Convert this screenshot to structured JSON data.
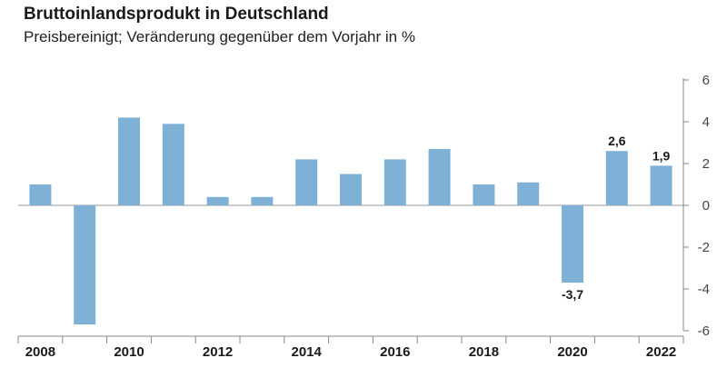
{
  "header": {
    "title": "Bruttoinlandsprodukt in Deutschland",
    "subtitle": "Preisbereinigt; Veränderung gegenüber dem Vorjahr in %"
  },
  "colors": {
    "bar": "#7fb0d6",
    "axis": "#888888",
    "text": "#1a1a1a"
  },
  "chart_data": {
    "type": "bar",
    "title": "Bruttoinlandsprodukt in Deutschland",
    "subtitle": "Preisbereinigt; Veränderung gegenüber dem Vorjahr in %",
    "categories": [
      "2008",
      "2009",
      "2010",
      "2011",
      "2012",
      "2013",
      "2014",
      "2015",
      "2016",
      "2017",
      "2018",
      "2019",
      "2020",
      "2021",
      "2022"
    ],
    "values": [
      1.0,
      -5.7,
      4.2,
      3.9,
      0.4,
      0.4,
      2.2,
      1.5,
      2.2,
      2.7,
      1.0,
      1.1,
      -3.7,
      2.6,
      1.9
    ],
    "x_tick_labels": [
      "2008",
      "2010",
      "2012",
      "2014",
      "2016",
      "2018",
      "2020",
      "2022"
    ],
    "y_ticks": [
      "6",
      "4",
      "2",
      "0",
      "-2",
      "-4",
      "-6"
    ],
    "y_tick_values": [
      6,
      4,
      2,
      0,
      -2,
      -4,
      -6
    ],
    "data_labels": [
      {
        "category": "2020",
        "text": "-3,7"
      },
      {
        "category": "2021",
        "text": "2,6"
      },
      {
        "category": "2022",
        "text": "1,9"
      }
    ],
    "ylim": [
      -6,
      6
    ],
    "y_axis_side": "right",
    "grid": false,
    "legend": "none"
  }
}
